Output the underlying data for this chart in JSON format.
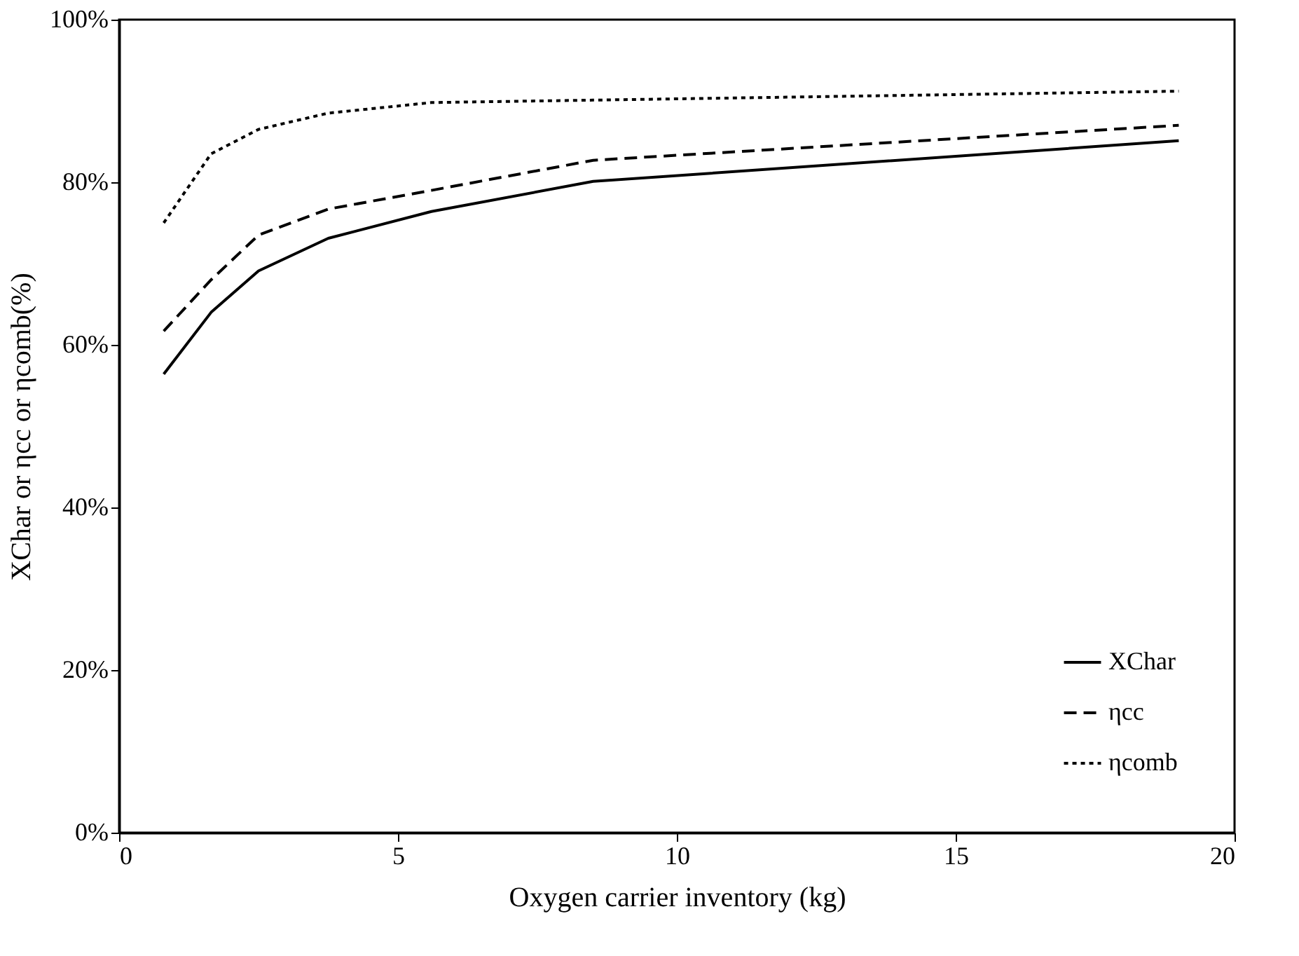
{
  "chart_data": {
    "type": "line",
    "xlabel": "Oxygen carrier inventory (kg)",
    "ylabel": "XChar or ηcc or ηcomb(%)",
    "xlim": [
      0,
      20
    ],
    "xticks": [
      0,
      5,
      10,
      15,
      20
    ],
    "ylim": [
      0,
      100
    ],
    "yticks": [
      {
        "value": 0,
        "label": "0%"
      },
      {
        "value": 20,
        "label": "20%"
      },
      {
        "value": 40,
        "label": "40%"
      },
      {
        "value": 60,
        "label": "60%"
      },
      {
        "value": 80,
        "label": "80%"
      },
      {
        "value": 100,
        "label": "100%"
      }
    ],
    "grid": false,
    "legend": "bottom right",
    "marker": "none",
    "x": [
      0.8,
      1.65,
      2.5,
      3.75,
      5.6,
      8.5,
      19
    ],
    "series": [
      {
        "name": "XChar",
        "color": "#000000",
        "line_style": "solid",
        "values": [
          56.4,
          64.0,
          69.1,
          73.1,
          76.4,
          80.1,
          85.1
        ]
      },
      {
        "name": "ηcc",
        "color": "#000000",
        "line_style": "dashed",
        "values": [
          61.7,
          68.0,
          73.5,
          76.7,
          79.0,
          82.7,
          87.0
        ]
      },
      {
        "name": "ηcomb",
        "color": "#000000",
        "line_style": "dotted",
        "values": [
          75.0,
          83.5,
          86.5,
          88.5,
          89.8,
          90.1,
          91.2
        ]
      }
    ]
  }
}
